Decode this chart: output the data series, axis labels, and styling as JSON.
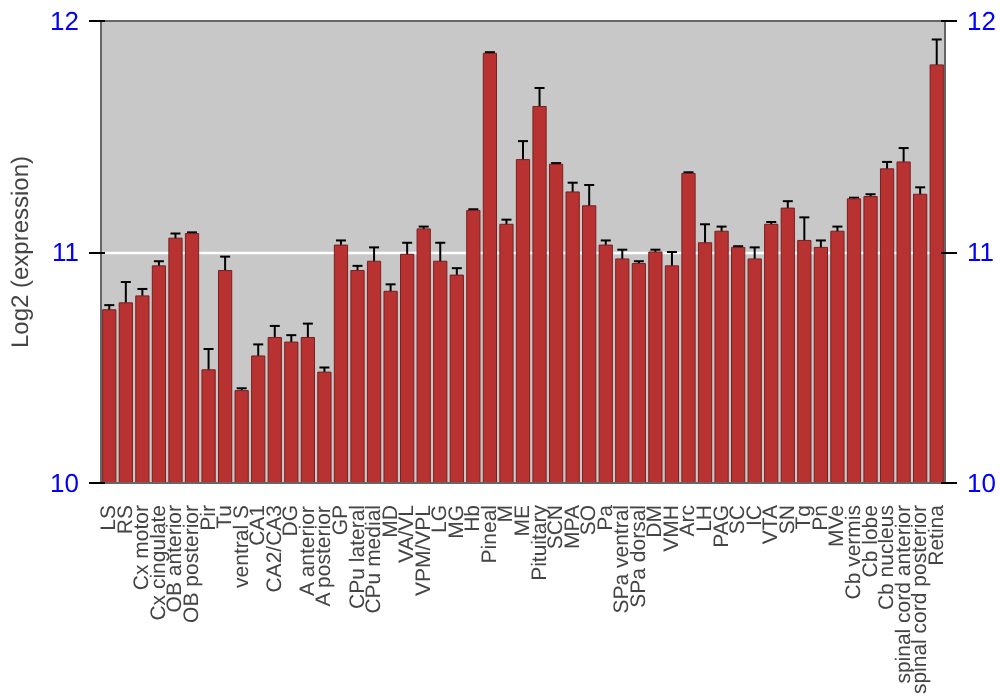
{
  "chart_data": {
    "type": "bar",
    "ylabel": "Log2 (expression)",
    "categories": [
      "LS",
      "RS",
      "Cx motor",
      "Cx cingulate",
      "OB anterior",
      "OB posterior",
      "Pir",
      "Tu",
      "ventral S",
      "CA1",
      "CA2/CA3",
      "DG",
      "A anterior",
      "A posterior",
      "GP",
      "CPu lateral",
      "CPu medial",
      "MD",
      "VA/VL",
      "VPM/VPL",
      "LG",
      "MG",
      "Hb",
      "Pineal",
      "M",
      "ME",
      "Pituitary",
      "SCN",
      "MPA",
      "SO",
      "Pa",
      "SPa ventral",
      "SPa dorsal",
      "DM",
      "VMH",
      "Arc",
      "LH",
      "PAG",
      "SC",
      "IC",
      "VTA",
      "SN",
      "Tg",
      "Pn",
      "MVe",
      "Cb vermis",
      "Cb lobe",
      "Cb nucleus",
      "spinal cord anterior",
      "spinal cord posterior",
      "Retina"
    ],
    "values": [
      10.75,
      10.78,
      10.81,
      10.94,
      11.06,
      11.08,
      10.49,
      10.92,
      10.4,
      10.55,
      10.63,
      10.61,
      10.63,
      10.48,
      11.03,
      10.92,
      10.96,
      10.83,
      10.99,
      11.1,
      10.96,
      10.9,
      11.18,
      11.86,
      11.12,
      11.4,
      11.63,
      11.38,
      11.26,
      11.2,
      11.03,
      10.97,
      10.95,
      11.0,
      10.94,
      11.34,
      11.04,
      11.09,
      11.02,
      10.97,
      11.12,
      11.19,
      11.05,
      11.02,
      11.09,
      11.23,
      11.24,
      11.36,
      11.39,
      11.25,
      11.81
    ],
    "errors": [
      0.02,
      0.09,
      0.03,
      0.02,
      0.02,
      0.005,
      0.09,
      0.06,
      0.01,
      0.05,
      0.05,
      0.03,
      0.06,
      0.02,
      0.02,
      0.02,
      0.06,
      0.03,
      0.05,
      0.01,
      0.08,
      0.03,
      0.005,
      0.005,
      0.02,
      0.08,
      0.08,
      0.005,
      0.04,
      0.09,
      0.02,
      0.04,
      0.01,
      0.01,
      0.06,
      0.005,
      0.08,
      0.02,
      0.005,
      0.05,
      0.01,
      0.03,
      0.1,
      0.03,
      0.02,
      0.005,
      0.01,
      0.03,
      0.06,
      0.03,
      0.11
    ],
    "color": "#b83232",
    "ylim": [
      10,
      12
    ],
    "yticks": [
      10,
      11,
      12
    ],
    "y2lim": [
      10,
      12
    ],
    "y2ticks": [
      10,
      11,
      12
    ],
    "grid": "y"
  }
}
